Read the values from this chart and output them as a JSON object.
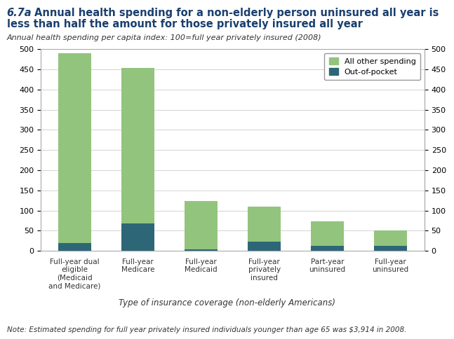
{
  "categories": [
    "Full-year dual\neligible\n(Medicaid\nand Medicare)",
    "Full-year\nMedicare",
    "Full-year\nMedicaid",
    "Full-year\nprivately\ninsured",
    "Part-year\nuninsured",
    "Full-year\nuninsured"
  ],
  "other_spending": [
    470,
    385,
    120,
    88,
    62,
    38
  ],
  "out_of_pocket": [
    20,
    68,
    3,
    22,
    12,
    12
  ],
  "color_other": "#93c47d",
  "color_oop": "#2d6777",
  "ylim": [
    0,
    500
  ],
  "yticks": [
    0,
    50,
    100,
    150,
    200,
    250,
    300,
    350,
    400,
    450,
    500
  ],
  "title_num": "6.7a",
  "title_text": "  Annual health spending for a non-elderly person uninsured all year is\nless than half the amount for those privately insured all year",
  "subtitle": "Annual health spending per capita index: 100=full year privately insured (2008)",
  "xlabel": "Type of insurance coverage (non-elderly Americans)",
  "legend_labels": [
    "All other spending",
    "Out-of-pocket"
  ],
  "note": "Note: Estimated spending for full year privately insured individuals younger than age 65 was $3,914 in 2008.",
  "title_color": "#1a3f6f",
  "subtitle_color": "#333333",
  "xlabel_color": "#333333",
  "note_color": "#333333",
  "background_color": "#ffffff",
  "fig_background": "#ffffff",
  "grid_color": "#cccccc",
  "spine_color": "#aaaaaa"
}
